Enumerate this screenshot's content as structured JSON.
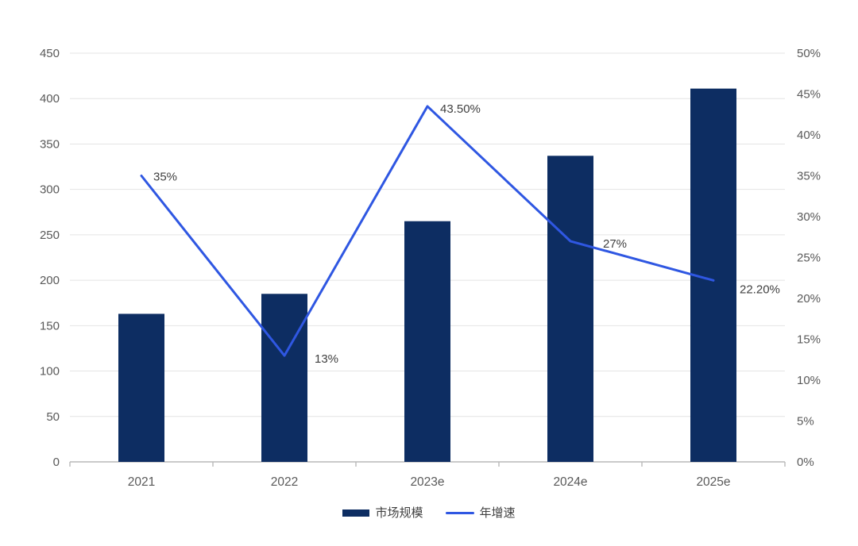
{
  "chart_data": {
    "type": "combo-bar-line",
    "title": "",
    "categories": [
      "2021",
      "2022",
      "2023e",
      "2024e",
      "2025e"
    ],
    "series": [
      {
        "name": "市场规模",
        "type": "bar",
        "axis": "left",
        "values": [
          163,
          185,
          265,
          337,
          411
        ]
      },
      {
        "name": "年增速",
        "type": "line",
        "axis": "right",
        "values": [
          35,
          13,
          43.5,
          27,
          22.2
        ],
        "data_labels": [
          "35%",
          "13%",
          "43.50%",
          "27%",
          "22.20%"
        ],
        "label_offsets": [
          {
            "dx": 15,
            "dy": 1
          },
          {
            "dx": 38,
            "dy": 4
          },
          {
            "dx": 16,
            "dy": 3
          },
          {
            "dx": 41,
            "dy": 3
          },
          {
            "dx": 33,
            "dy": 11
          }
        ]
      }
    ],
    "left_axis": {
      "min": 0,
      "max": 450,
      "step": 50,
      "tick_labels": [
        "0",
        "50",
        "100",
        "150",
        "200",
        "250",
        "300",
        "350",
        "400",
        "450"
      ]
    },
    "right_axis": {
      "min": 0,
      "max": 50,
      "step": 5,
      "tick_labels": [
        "0%",
        "5%",
        "10%",
        "15%",
        "20%",
        "25%",
        "30%",
        "35%",
        "40%",
        "45%",
        "50%"
      ]
    },
    "grid": true,
    "legend_position": "bottom"
  },
  "legend": {
    "bar_label": "市场规模",
    "line_label": "年增速"
  },
  "styles": {
    "bar_color": "#0d2d62",
    "line_color": "#2f57e2",
    "grid_color": "#e4e4e4",
    "axis_color": "#b9b9b9",
    "tick_text_color": "#595959",
    "data_label_color": "#404040",
    "background": "#ffffff"
  }
}
